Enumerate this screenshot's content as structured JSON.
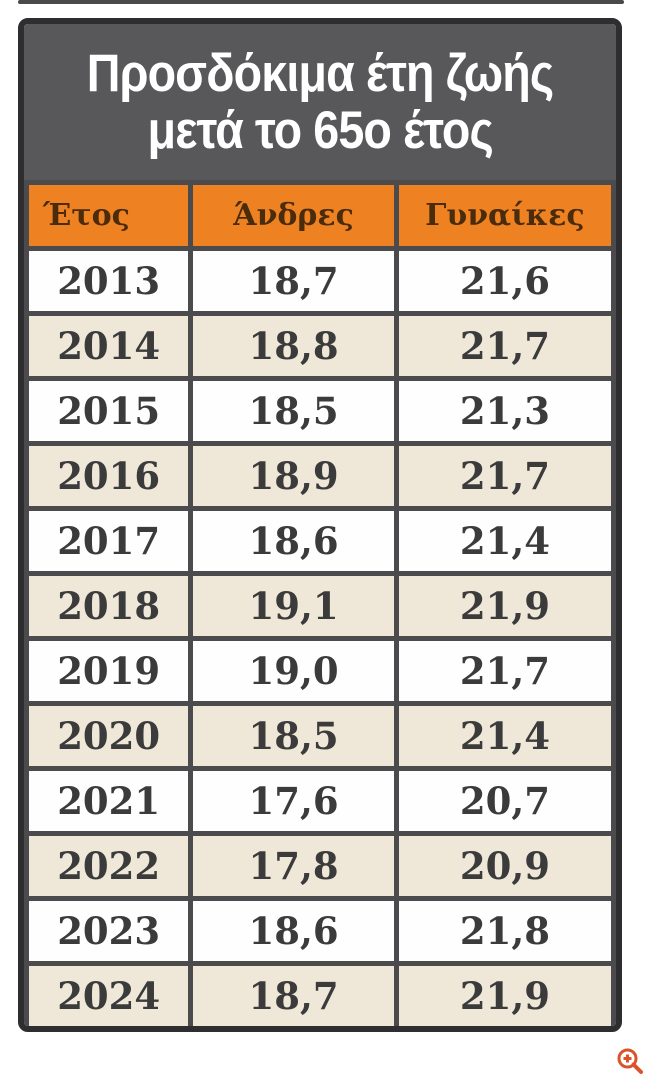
{
  "figure": {
    "title": {
      "line1": "Προσδόκιμα έτη ζωής",
      "line2": "μετά το 65ο έτος"
    },
    "table": {
      "columns": [
        "Έτος",
        "Άνδρες",
        "Γυναίκες"
      ],
      "rows": [
        [
          "2013",
          "18,7",
          "21,6"
        ],
        [
          "2014",
          "18,8",
          "21,7"
        ],
        [
          "2015",
          "18,5",
          "21,3"
        ],
        [
          "2016",
          "18,9",
          "21,7"
        ],
        [
          "2017",
          "18,6",
          "21,4"
        ],
        [
          "2018",
          "19,1",
          "21,9"
        ],
        [
          "2019",
          "19,0",
          "21,7"
        ],
        [
          "2020",
          "18,5",
          "21,4"
        ],
        [
          "2021",
          "17,6",
          "20,7"
        ],
        [
          "2022",
          "17,8",
          "20,9"
        ],
        [
          "2023",
          "18,6",
          "21,8"
        ],
        [
          "2024",
          "18,7",
          "21,9"
        ]
      ]
    }
  },
  "icons": {
    "zoom_in": "magnifier-plus"
  },
  "colors": {
    "title_band_bg": "#58585a",
    "title_text": "#ffffff",
    "header_bg": "#ee8222",
    "header_text": "#4a2b0b",
    "row_alt_bg": "#efe8d9",
    "row_bg": "#fefefe",
    "cell_border": "#4b4b4d",
    "outer_border": "#2e2e30",
    "data_text": "#3b3b3c",
    "zoom_icon": "#d9542b"
  },
  "chart_data": {
    "type": "table",
    "title": "Προσδόκιμα έτη ζωής μετά το 65ο έτος",
    "columns": [
      "Έτος",
      "Άνδρες",
      "Γυναίκες"
    ],
    "categories": [
      "2013",
      "2014",
      "2015",
      "2016",
      "2017",
      "2018",
      "2019",
      "2020",
      "2021",
      "2022",
      "2023",
      "2024"
    ],
    "series": [
      {
        "name": "Άνδρες",
        "values": [
          18.7,
          18.8,
          18.5,
          18.9,
          18.6,
          19.1,
          19.0,
          18.5,
          17.6,
          17.8,
          18.6,
          18.7
        ]
      },
      {
        "name": "Γυναίκες",
        "values": [
          21.6,
          21.7,
          21.3,
          21.7,
          21.4,
          21.9,
          21.7,
          21.4,
          20.7,
          20.9,
          21.8,
          21.9
        ]
      }
    ],
    "decimal_separator": ","
  }
}
